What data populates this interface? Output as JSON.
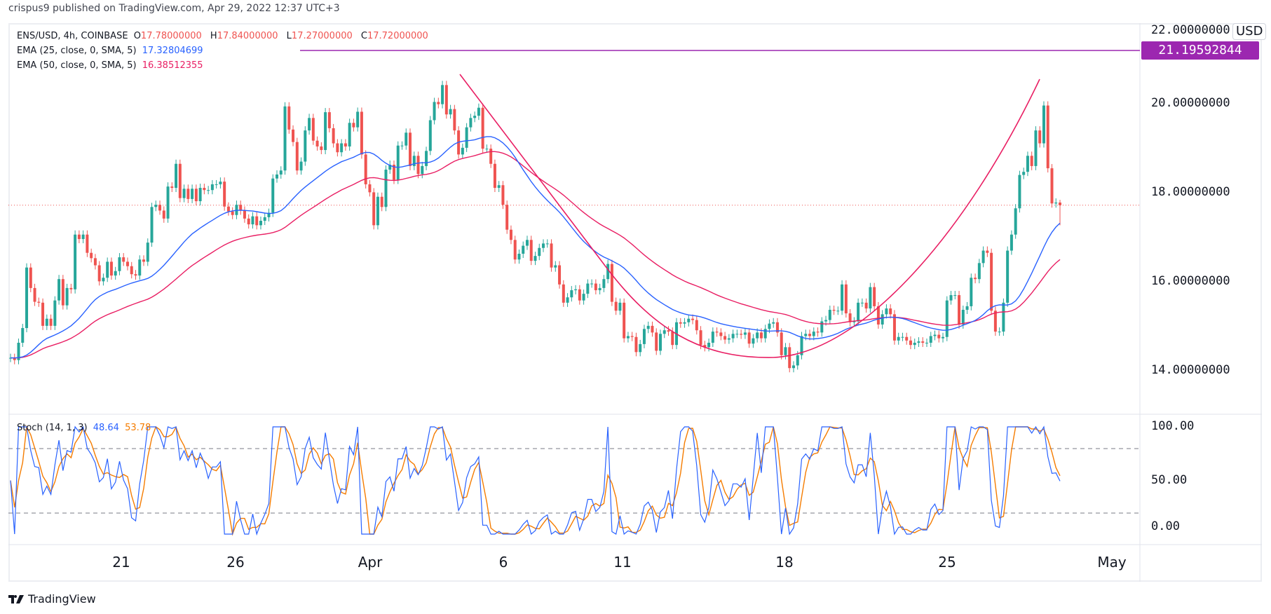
{
  "header": {
    "published": "crispus9 published on TradingView.com, Apr 29, 2022 12:37 UTC+3"
  },
  "legend": {
    "symbol": "ENS/USD, 4h, COINBASE",
    "open_label": "O",
    "open": "17.78000000",
    "high_label": "H",
    "high": "17.84000000",
    "low_label": "L",
    "low": "17.27000000",
    "close_label": "C",
    "close": "17.72000000",
    "ema25_label": "EMA (25, close, 0, SMA, 5)",
    "ema25_value": "17.32804699",
    "ema50_label": "EMA (50, close, 0, SMA, 5)",
    "ema50_value": "16.38512355",
    "stoch_label": "Stoch (14, 1, 3)",
    "stoch_k": "48.64",
    "stoch_d": "53.78"
  },
  "currency_badge": "USD",
  "footer": {
    "brand": "TradingView"
  },
  "colors": {
    "up": "#26a69a",
    "down": "#ef5350",
    "ema25": "#2962ff",
    "ema50": "#e91e63",
    "stoch_k": "#2962ff",
    "stoch_d": "#f57c00",
    "hline": "#9c27b0",
    "drawing": "#e91e63"
  },
  "chart_data": {
    "type": "candlestick",
    "interval": "4h",
    "scale": "linear",
    "ylim": [
      13.77,
      22.0
    ],
    "y_ticks": [
      "22.00000000",
      "20.00000000",
      "18.00000000",
      "16.00000000",
      "14.00000000"
    ],
    "y_tick_values": [
      22,
      20,
      18,
      16,
      14
    ],
    "x_ticks": [
      "21",
      "26",
      "Apr",
      "6",
      "11",
      "18",
      "25",
      "May"
    ],
    "last_price": 17.72,
    "last_candle": {
      "open": 17.78,
      "high": 17.84,
      "low": 17.27,
      "close": 17.72
    },
    "horizontal_line": {
      "price": 21.19592844,
      "label": "21.19592844"
    },
    "closes": [
      14.29,
      14.24,
      14.63,
      14.96,
      16.32,
      15.86,
      15.55,
      15.53,
      15.01,
      15.17,
      15.01,
      15.58,
      16.06,
      15.47,
      15.86,
      15.83,
      17.06,
      16.96,
      17.06,
      16.65,
      16.53,
      16.37,
      16.01,
      16.09,
      16.45,
      16.14,
      16.24,
      16.55,
      16.45,
      16.35,
      16.17,
      16.14,
      16.5,
      16.45,
      16.88,
      17.68,
      17.73,
      17.6,
      17.42,
      18.14,
      18.11,
      18.65,
      17.88,
      18.09,
      17.86,
      18.09,
      17.81,
      18.11,
      18.06,
      18.06,
      18.19,
      18.19,
      18.25,
      17.69,
      17.58,
      17.5,
      17.73,
      17.6,
      17.42,
      17.29,
      17.47,
      17.27,
      17.37,
      17.45,
      17.55,
      18.32,
      18.41,
      18.5,
      19.94,
      19.42,
      19.14,
      18.5,
      18.7,
      19.4,
      19.68,
      19.17,
      19.04,
      18.96,
      19.81,
      19.45,
      19.11,
      18.91,
      19.11,
      19.04,
      19.57,
      19.47,
      19.82,
      18.86,
      18.19,
      18.01,
      17.27,
      17.91,
      17.68,
      18.52,
      18.63,
      18.29,
      19.06,
      19.06,
      19.35,
      18.6,
      18.83,
      18.42,
      18.6,
      18.94,
      19.63,
      20.04,
      19.99,
      20.42,
      19.76,
      19.88,
      19.4,
      18.86,
      19.01,
      19.47,
      19.68,
      19.73,
      19.91,
      18.99,
      18.99,
      18.65,
      18.11,
      18.17,
      17.73,
      17.17,
      16.94,
      16.5,
      16.63,
      16.81,
      16.94,
      16.47,
      16.58,
      16.76,
      16.86,
      16.86,
      16.32,
      16.37,
      15.94,
      15.53,
      15.65,
      15.81,
      15.83,
      15.58,
      15.73,
      15.96,
      15.96,
      15.81,
      15.86,
      16.06,
      16.4,
      15.55,
      15.35,
      15.53,
      14.73,
      14.78,
      14.76,
      14.42,
      14.6,
      14.94,
      15.01,
      14.86,
      14.45,
      14.83,
      14.91,
      14.88,
      14.58,
      15.09,
      15.06,
      15.09,
      15.17,
      15.14,
      14.91,
      14.58,
      14.53,
      14.63,
      14.88,
      14.86,
      14.78,
      14.7,
      14.73,
      14.83,
      14.83,
      14.81,
      14.86,
      14.61,
      14.73,
      14.86,
      14.73,
      14.94,
      15.06,
      15.09,
      14.86,
      14.35,
      14.53,
      14.06,
      14.12,
      14.35,
      14.78,
      14.83,
      14.78,
      14.88,
      14.86,
      15.11,
      15.14,
      15.37,
      15.35,
      15.35,
      15.94,
      15.29,
      15.09,
      15.11,
      15.53,
      15.53,
      15.4,
      15.88,
      15.45,
      15.04,
      15.27,
      15.4,
      15.27,
      14.68,
      14.76,
      14.76,
      14.68,
      14.58,
      14.63,
      14.66,
      14.63,
      14.63,
      14.78,
      14.81,
      14.73,
      14.76,
      15.58,
      15.7,
      15.7,
      15.04,
      15.37,
      15.45,
      16.09,
      16.06,
      16.42,
      16.7,
      16.65,
      15.35,
      14.88,
      14.88,
      15.53,
      16.7,
      17.06,
      17.65,
      18.4,
      18.47,
      18.83,
      18.6,
      19.4,
      19.11,
      19.96,
      18.55,
      17.76,
      17.78,
      17.72
    ],
    "stoch": {
      "ylim": [
        0,
        100
      ],
      "y_ticks": [
        "100.00",
        "50.00",
        "0.00"
      ],
      "y_tick_values": [
        100,
        50,
        0
      ],
      "bands": [
        80,
        20
      ],
      "k_period": 14,
      "k_smooth": 1,
      "d_period": 3
    },
    "ema_periods": [
      25,
      50
    ],
    "ema_smoothing": 5
  }
}
